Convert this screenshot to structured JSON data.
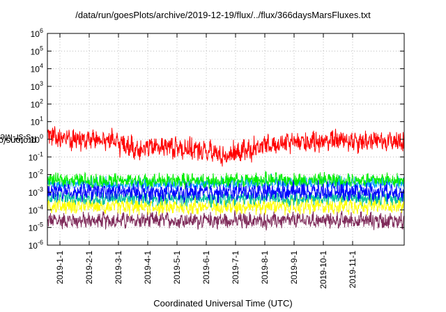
{
  "chart_data": {
    "type": "line",
    "title": "/data/run/goesPlots/archive/2019-12-19/flux/../flux/366daysMarsFluxes.txt",
    "xlabel": "Coordinated Universal Time (UTC)",
    "ylabel_prefix": "protons/cm",
    "ylabel_sup": "2",
    "ylabel_suffix": "-s-sr-MeV",
    "x_ticks": [
      "2019-1-1",
      "2019-2-1",
      "2019-3-1",
      "2019-4-1",
      "2019-5-1",
      "2019-6-1",
      "2019-7-1",
      "2019-8-1",
      "2019-9-1",
      "2019-10-1",
      "2019-11-1"
    ],
    "y_scale": "log",
    "ylim": [
      1e-06,
      1000000.0
    ],
    "y_ticks": [
      {
        "base": "10",
        "exp": "-6"
      },
      {
        "base": "10",
        "exp": "-5"
      },
      {
        "base": "10",
        "exp": "-4"
      },
      {
        "base": "10",
        "exp": "-3"
      },
      {
        "base": "10",
        "exp": "-2"
      },
      {
        "base": "10",
        "exp": "-1"
      },
      {
        "base": "10",
        "exp": "0"
      },
      {
        "base": "10",
        "exp": "1"
      },
      {
        "base": "10",
        "exp": "2"
      },
      {
        "base": "10",
        "exp": "3"
      },
      {
        "base": "10",
        "exp": "4"
      },
      {
        "base": "10",
        "exp": "5"
      },
      {
        "base": "10",
        "exp": "6"
      }
    ],
    "grid": true,
    "series": [
      {
        "color": "#7f2b5a",
        "level": [
          2.5e-05,
          2.5e-05,
          2.4e-05,
          2.5e-05,
          2.6e-05,
          2.5e-05,
          2.5e-05,
          2.4e-05,
          2.5e-05,
          2.6e-05,
          2.5e-05,
          2.5e-05,
          2.4e-05
        ],
        "spread": 0.5
      },
      {
        "color": "#ffff00",
        "level": [
          0.00018,
          0.00017,
          0.00016,
          0.00015,
          0.00015,
          0.00015,
          0.00016,
          0.00017,
          0.00016,
          0.00017,
          0.00017,
          0.00018,
          0.00017
        ],
        "spread": 0.5
      },
      {
        "color": "#00c0a0",
        "level": [
          0.0005,
          0.00048,
          0.00045,
          0.00045,
          0.00045,
          0.00044,
          0.00045,
          0.00048,
          0.00048,
          0.00049,
          0.0005,
          0.0005,
          0.0005
        ],
        "spread": 0.45
      },
      {
        "color": "#00a0ff",
        "level": [
          0.0028,
          0.0027,
          0.0026,
          0.0025,
          0.0025,
          0.0025,
          0.0026,
          0.0027,
          0.0027,
          0.0028,
          0.0028,
          0.0028,
          0.0028
        ],
        "spread": 0.5
      },
      {
        "color": "#00ee00",
        "level": [
          0.005,
          0.0048,
          0.0046,
          0.0045,
          0.0045,
          0.0044,
          0.0046,
          0.0048,
          0.0048,
          0.0049,
          0.005,
          0.005,
          0.005
        ],
        "spread": 0.45
      },
      {
        "color": "#ffffff",
        "level": [
          0.0015,
          0.0015,
          0.0014,
          0.0014,
          0.0013,
          0.0013,
          0.0014,
          0.0015,
          0.0015,
          0.0015,
          0.0015,
          0.0015,
          0.0015
        ],
        "spread": 0.3
      },
      {
        "color": "#0000ff",
        "level": [
          0.0011,
          0.0011,
          0.001,
          0.001,
          0.0009,
          0.0009,
          0.001,
          0.0011,
          0.0011,
          0.0011,
          0.0011,
          0.0011,
          0.0011
        ],
        "spread": 0.55
      },
      {
        "color": "#ff0000",
        "level": [
          1.5,
          1.0,
          0.9,
          0.3,
          0.4,
          0.25,
          0.12,
          0.3,
          0.6,
          0.8,
          0.9,
          0.8,
          0.8
        ],
        "spread": 0.7
      }
    ]
  }
}
